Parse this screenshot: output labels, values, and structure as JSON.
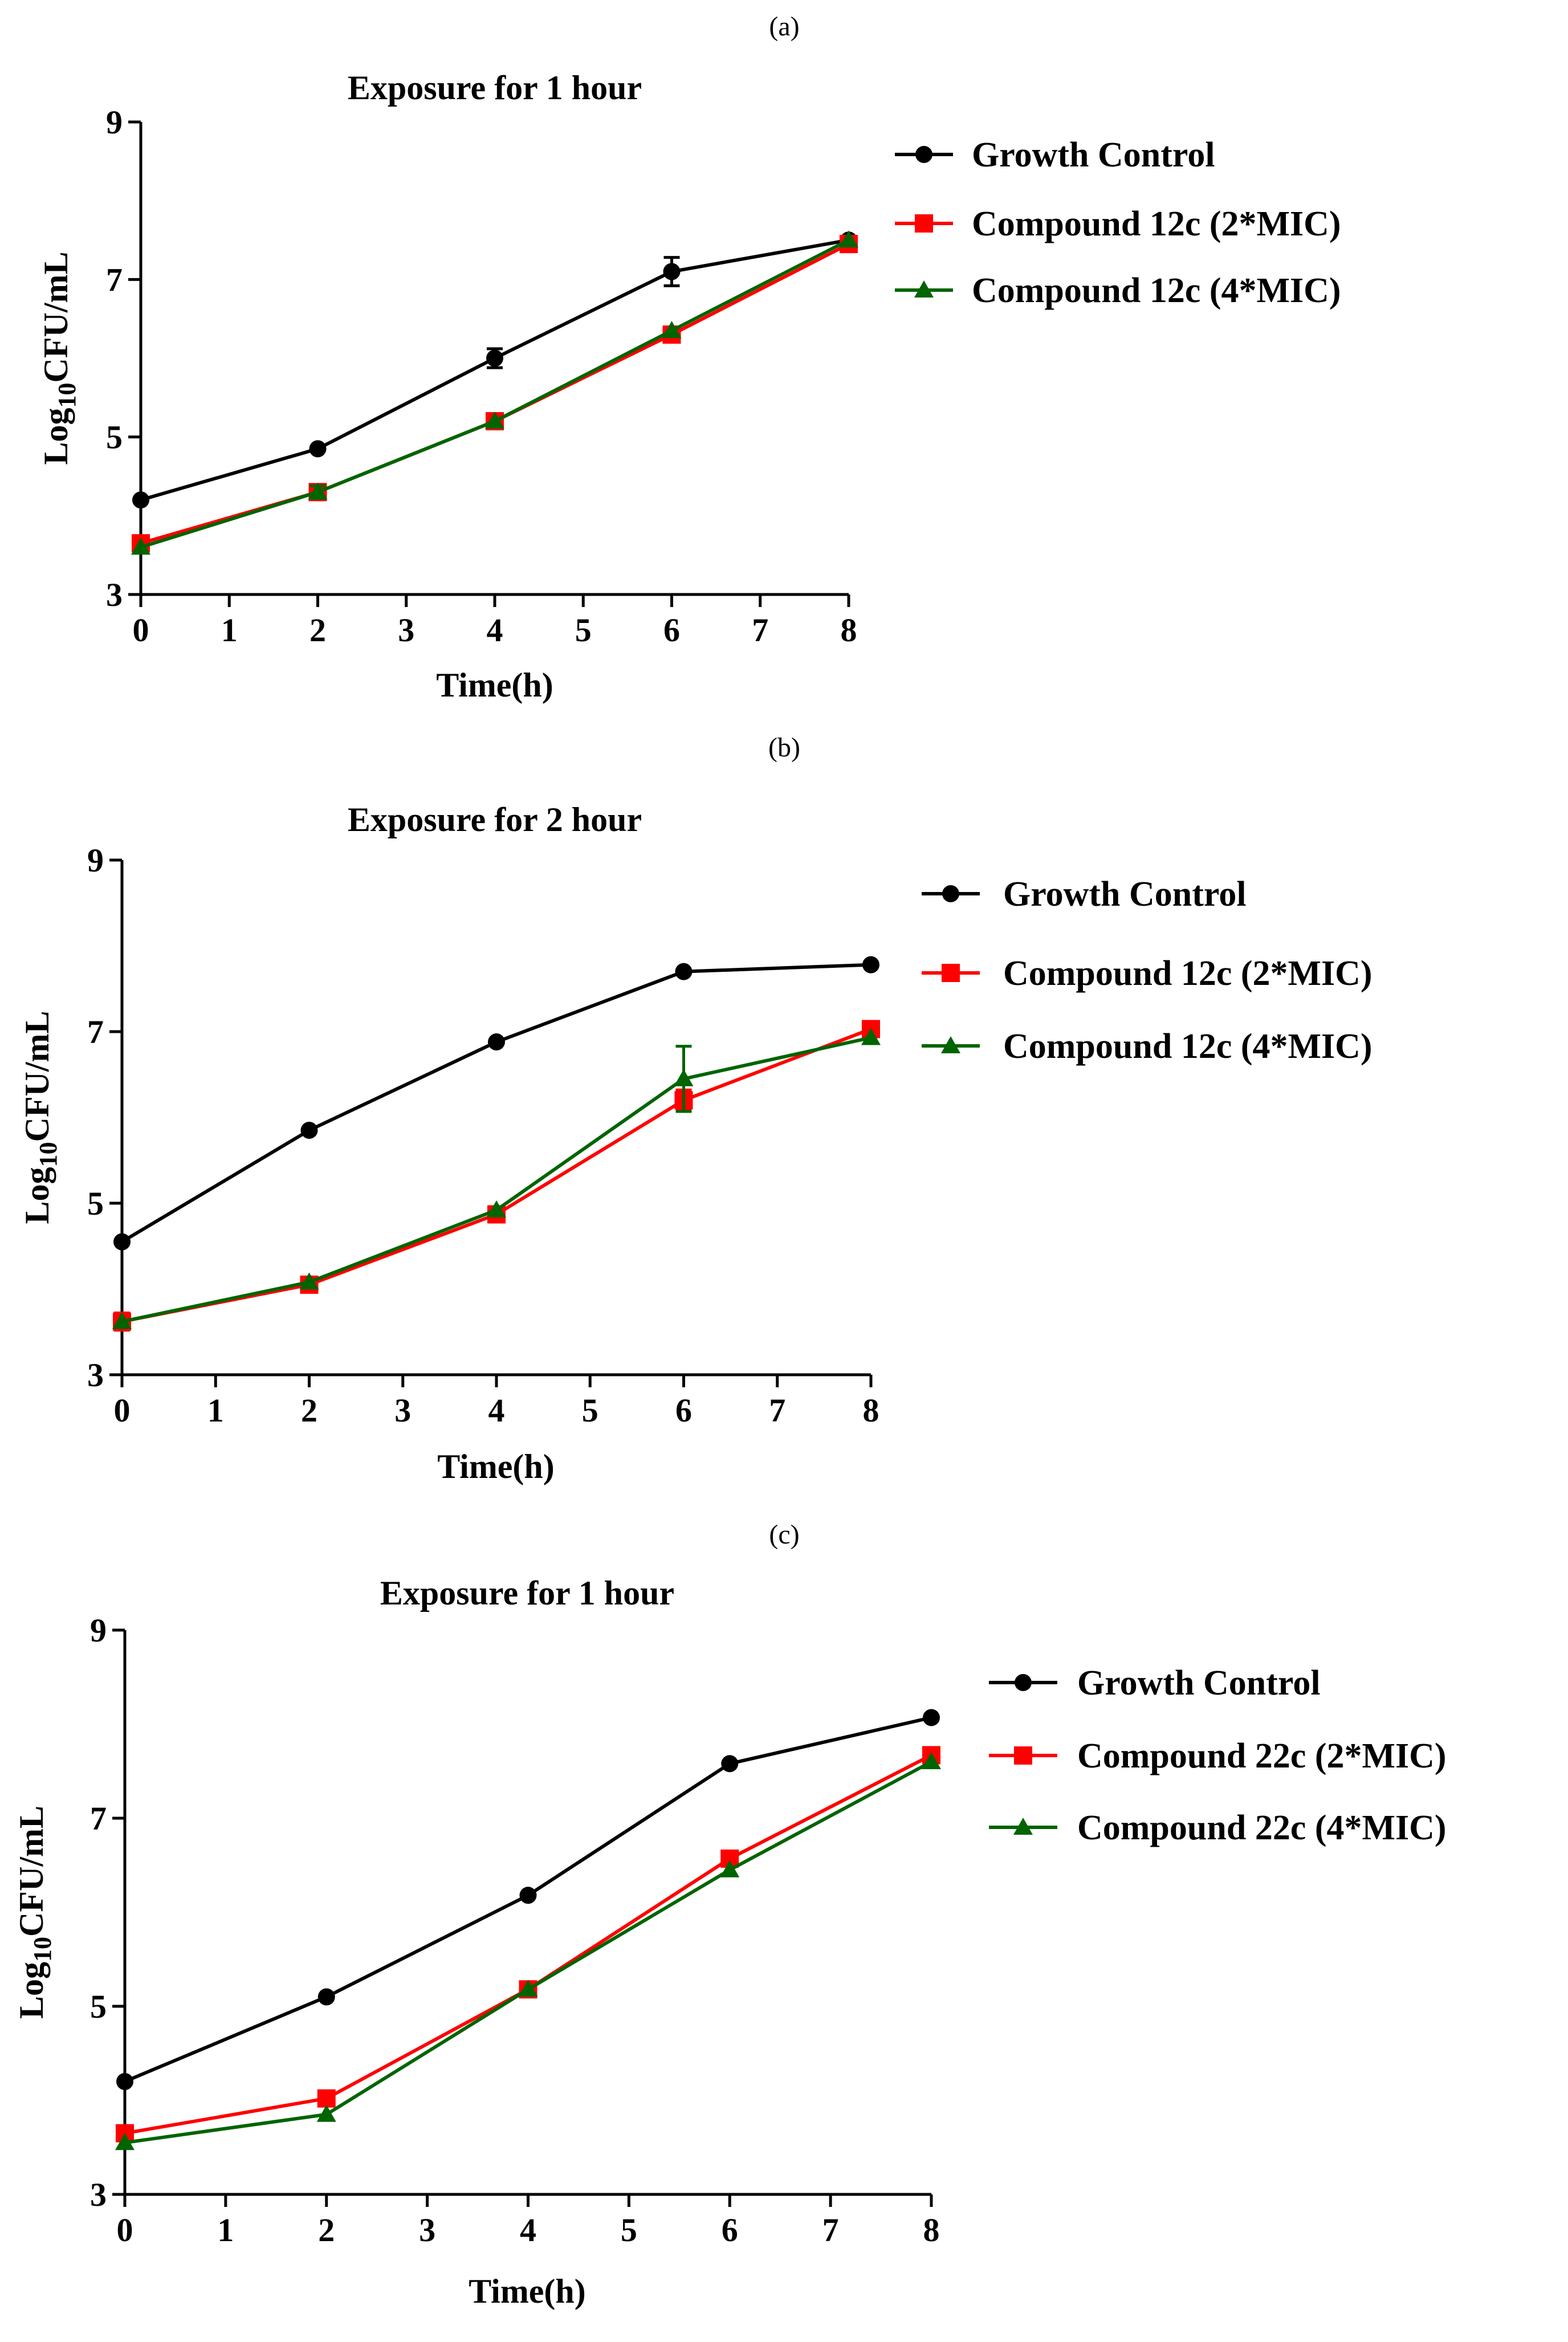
{
  "colors": {
    "series_1": "#000000",
    "series_2": "#ff0000",
    "series_3": "#006400"
  },
  "chart_data": [
    {
      "type": "line",
      "panel_label": "(a)",
      "title": "Exposure for 1 hour",
      "xlabel": "Time(h)",
      "ylabel": "Log10CFU/mL",
      "ylabel_base": "Log",
      "ylabel_sub": "10",
      "ylabel_unit": "CFU/mL",
      "xlim": [
        0,
        8
      ],
      "ylim": [
        3,
        9
      ],
      "xticks": [
        "0",
        "1",
        "2",
        "3",
        "4",
        "5",
        "6",
        "7",
        "8"
      ],
      "yticks": [
        "3",
        "5",
        "7",
        "9"
      ],
      "series": [
        {
          "name": "Growth Control",
          "color": "#000000",
          "marker": "circle",
          "x": [
            0,
            2,
            4,
            6,
            8
          ],
          "y": [
            4.2,
            4.85,
            6.0,
            7.1,
            7.5
          ],
          "err": [
            0,
            0,
            0.12,
            0.18,
            0
          ]
        },
        {
          "name": "Compound 12c (2*MIC)",
          "color": "#ff0000",
          "marker": "square",
          "x": [
            0,
            2,
            4,
            6,
            8
          ],
          "y": [
            3.65,
            4.3,
            5.2,
            6.3,
            7.45
          ],
          "err": [
            0,
            0,
            0,
            0,
            0
          ]
        },
        {
          "name": "Compound 12c (4*MIC)",
          "color": "#006400",
          "marker": "triangle",
          "x": [
            0,
            2,
            4,
            6,
            8
          ],
          "y": [
            3.6,
            4.3,
            5.2,
            6.35,
            7.5
          ],
          "err": [
            0,
            0.08,
            0,
            0,
            0
          ]
        }
      ]
    },
    {
      "type": "line",
      "panel_label": "(b)",
      "title": "Exposure for 2 hour",
      "xlabel": "Time(h)",
      "ylabel": "Log10CFU/mL",
      "ylabel_base": "Log",
      "ylabel_sub": "10",
      "ylabel_unit": "CFU/mL",
      "xlim": [
        0,
        8
      ],
      "ylim": [
        3,
        9
      ],
      "xticks": [
        "0",
        "1",
        "2",
        "3",
        "4",
        "5",
        "6",
        "7",
        "8"
      ],
      "yticks": [
        "3",
        "5",
        "7",
        "9"
      ],
      "series": [
        {
          "name": "Growth Control",
          "color": "#000000",
          "marker": "circle",
          "x": [
            0,
            2,
            4,
            6,
            8
          ],
          "y": [
            4.55,
            5.85,
            6.88,
            7.7,
            7.78
          ],
          "err": [
            0,
            0,
            0,
            0,
            0
          ]
        },
        {
          "name": "Compound 12c (2*MIC)",
          "color": "#ff0000",
          "marker": "square",
          "x": [
            0,
            2,
            4,
            6,
            8
          ],
          "y": [
            3.62,
            4.05,
            4.87,
            6.2,
            7.03
          ],
          "err": [
            0.1,
            0,
            0,
            0.12,
            0
          ]
        },
        {
          "name": "Compound 12c (4*MIC)",
          "color": "#006400",
          "marker": "triangle",
          "x": [
            0,
            2,
            4,
            6,
            8
          ],
          "y": [
            3.62,
            4.08,
            4.92,
            6.45,
            6.93
          ],
          "err": [
            0,
            0,
            0,
            0.38,
            0
          ]
        }
      ]
    },
    {
      "type": "line",
      "panel_label": "(c)",
      "title": "Exposure for 1 hour",
      "xlabel": "Time(h)",
      "ylabel": "Log10CFU/mL",
      "ylabel_base": "Log",
      "ylabel_sub": "10",
      "ylabel_unit": "CFU/mL",
      "xlim": [
        0,
        8
      ],
      "ylim": [
        3,
        9
      ],
      "xticks": [
        "0",
        "1",
        "2",
        "3",
        "4",
        "5",
        "6",
        "7",
        "8"
      ],
      "yticks": [
        "3",
        "5",
        "7",
        "9"
      ],
      "series": [
        {
          "name": "Growth Control",
          "color": "#000000",
          "marker": "circle",
          "x": [
            0,
            2,
            4,
            6,
            8
          ],
          "y": [
            4.2,
            5.1,
            6.18,
            7.58,
            8.07
          ],
          "err": [
            0,
            0,
            0,
            0,
            0
          ]
        },
        {
          "name": "Compound 22c (2*MIC)",
          "color": "#ff0000",
          "marker": "square",
          "x": [
            0,
            2,
            4,
            6,
            8
          ],
          "y": [
            3.65,
            4.02,
            5.18,
            6.57,
            7.67
          ],
          "err": [
            0,
            0,
            0,
            0,
            0
          ]
        },
        {
          "name": "Compound 22c (4*MIC)",
          "color": "#006400",
          "marker": "triangle",
          "x": [
            0,
            2,
            4,
            6,
            8
          ],
          "y": [
            3.55,
            3.85,
            5.18,
            6.45,
            7.6
          ],
          "err": [
            0,
            0,
            0,
            0,
            0
          ]
        }
      ]
    }
  ]
}
